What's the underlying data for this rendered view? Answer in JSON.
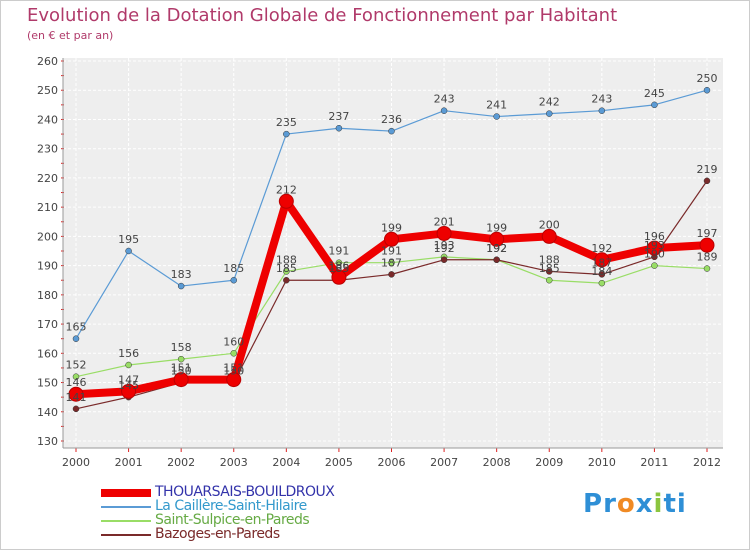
{
  "title": "Evolution de la Dotation Globale de Fonctionnement par Habitant",
  "subtitle": "(en € et par an)",
  "brand": {
    "letters": [
      "P",
      "r",
      "o",
      "x",
      "i",
      "t",
      "i"
    ],
    "colors": [
      "#2e8fd6",
      "#2e8fd6",
      "#f08a24",
      "#2e8fd6",
      "#8bc53f",
      "#2e8fd6",
      "#2e8fd6"
    ]
  },
  "chart_data": {
    "type": "line",
    "title": "Evolution de la Dotation Globale de Fonctionnement par Habitant",
    "subtitle": "(en € et par an)",
    "xlabel": "",
    "ylabel": "",
    "x": [
      "2000",
      "2001",
      "2002",
      "2003",
      "2004",
      "2005",
      "2006",
      "2007",
      "2008",
      "2009",
      "2010",
      "2011",
      "2012"
    ],
    "ylim": [
      130,
      260
    ],
    "yticks": [
      130,
      140,
      150,
      160,
      170,
      180,
      190,
      200,
      210,
      220,
      230,
      240,
      250,
      260
    ],
    "grid": true,
    "legend_position": "bottom-left",
    "series": [
      {
        "name": "THOUARSAIS-BOUILDROUX",
        "color": "#ee0000",
        "labelcolor": "#3333aa",
        "values": [
          146,
          147,
          151,
          151,
          212,
          186,
          199,
          201,
          199,
          200,
          192,
          196,
          197
        ],
        "labels": [
          "146",
          "147",
          "151",
          "151",
          "212",
          "186",
          "199",
          "201",
          "199",
          "200",
          "192",
          "196",
          "197"
        ]
      },
      {
        "name": "La Caillère-Saint-Hilaire",
        "color": "#5b9bd5",
        "labelcolor": "#3399cc",
        "values": [
          165,
          195,
          183,
          185,
          235,
          237,
          236,
          243,
          241,
          242,
          243,
          245,
          250
        ],
        "labels": [
          "165",
          "195",
          "183",
          "185",
          "235",
          "237",
          "236",
          "243",
          "241",
          "242",
          "243",
          "245",
          "250"
        ]
      },
      {
        "name": "Saint-Sulpice-en-Pareds",
        "color": "#99dd66",
        "labelcolor": "#66aa44",
        "values": [
          152,
          156,
          158,
          160,
          188,
          191,
          191,
          193,
          192,
          185,
          184,
          190,
          189
        ],
        "labels": [
          "152",
          "156",
          "158",
          "160",
          "188",
          "191",
          "191",
          "193",
          "192",
          "185",
          "184",
          "190",
          "189"
        ]
      },
      {
        "name": "Bazoges-en-Pareds",
        "color": "#7a2a2a",
        "labelcolor": "#7a2a2a",
        "values": [
          141,
          145,
          150,
          150,
          185,
          185,
          187,
          192,
          192,
          188,
          187,
          193,
          219
        ],
        "labels": [
          "141",
          "145",
          "150",
          "150",
          "185",
          "185",
          "187",
          "192",
          "192",
          "188",
          "187",
          "193",
          "219"
        ]
      }
    ]
  }
}
